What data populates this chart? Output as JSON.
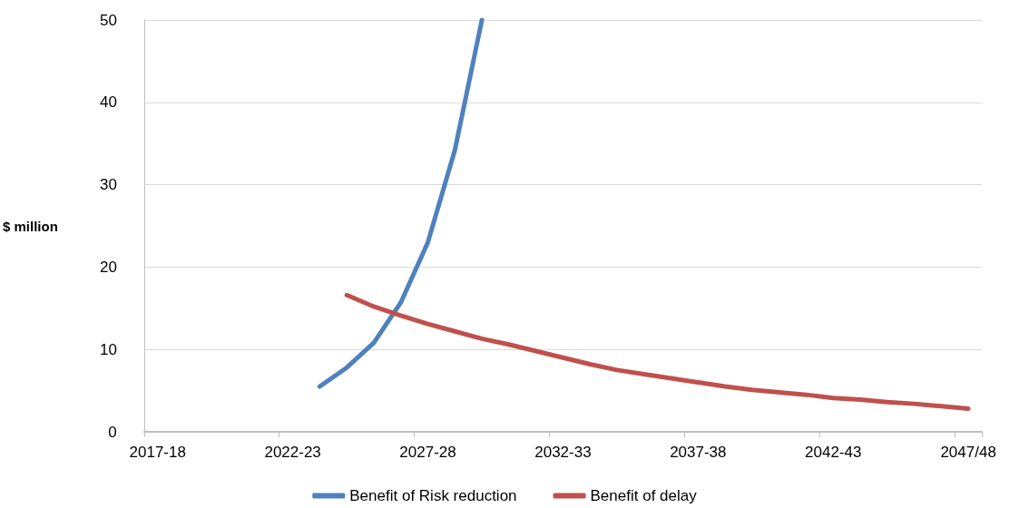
{
  "chart_data": {
    "type": "line",
    "ylabel": "$ million",
    "categories": [
      "2017-18",
      null,
      null,
      null,
      null,
      "2022-23",
      null,
      null,
      null,
      null,
      "2027-28",
      null,
      null,
      null,
      null,
      "2032-33",
      null,
      null,
      null,
      null,
      "2037-38",
      null,
      null,
      null,
      null,
      "2042-43",
      null,
      null,
      null,
      null,
      "2047/48"
    ],
    "series": [
      {
        "name": "Benefit of Risk reduction",
        "color": "#4f81bd",
        "values": [
          null,
          null,
          null,
          null,
          null,
          null,
          5.5,
          7.8,
          10.8,
          15.7,
          23.0,
          34.2,
          50,
          null,
          null,
          null,
          null,
          null,
          null,
          null,
          null,
          null,
          null,
          null,
          null,
          null,
          null,
          null,
          null,
          null,
          null
        ]
      },
      {
        "name": "Benefit of delay",
        "color": "#c0504d",
        "values": [
          null,
          null,
          null,
          null,
          null,
          null,
          null,
          16.6,
          15.2,
          14.1,
          13.1,
          12.2,
          11.3,
          10.6,
          9.8,
          9.0,
          8.2,
          7.5,
          7.0,
          6.5,
          6.0,
          5.5,
          5.1,
          4.8,
          4.5,
          4.1,
          3.9,
          3.6,
          3.4,
          3.1,
          2.8
        ]
      }
    ],
    "ylim": [
      0,
      50
    ],
    "yticks": [
      0,
      10,
      20,
      30,
      40,
      50
    ],
    "grid": "y",
    "legend": "bottom",
    "marker": "none",
    "line_style": "solid"
  }
}
